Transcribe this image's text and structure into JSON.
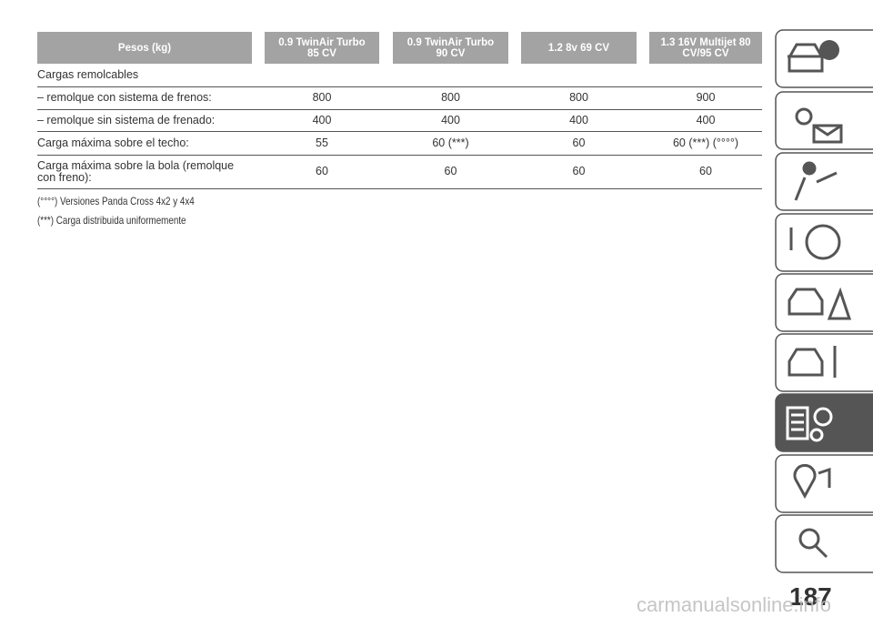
{
  "table": {
    "header": [
      "Pesos (kg)",
      "0.9 TwinAir Turbo\n85 CV",
      "0.9 TwinAir Turbo\n90 CV",
      "1.2 8v 69 CV",
      "1.3 16V Multijet 80\nCV/95 CV"
    ],
    "section": "Cargas remolcables",
    "rows": [
      [
        "– remolque con sistema de frenos:",
        "800",
        "800",
        "800",
        "900"
      ],
      [
        "– remolque sin sistema de frenado:",
        "400",
        "400",
        "400",
        "400"
      ],
      [
        "Carga máxima sobre el techo:",
        "55",
        "60 (***)",
        "60",
        "60 (***) (°°°°)"
      ],
      [
        "Carga máxima sobre la bola (remolque\ncon freno):",
        "60",
        "60",
        "60",
        "60"
      ]
    ]
  },
  "notes": [
    "(°°°°) Versiones Panda Cross 4x2 y 4x4",
    "(***) Carga distribuida uniformemente"
  ],
  "page_number": "187",
  "watermark": "carmanualsonline.info"
}
